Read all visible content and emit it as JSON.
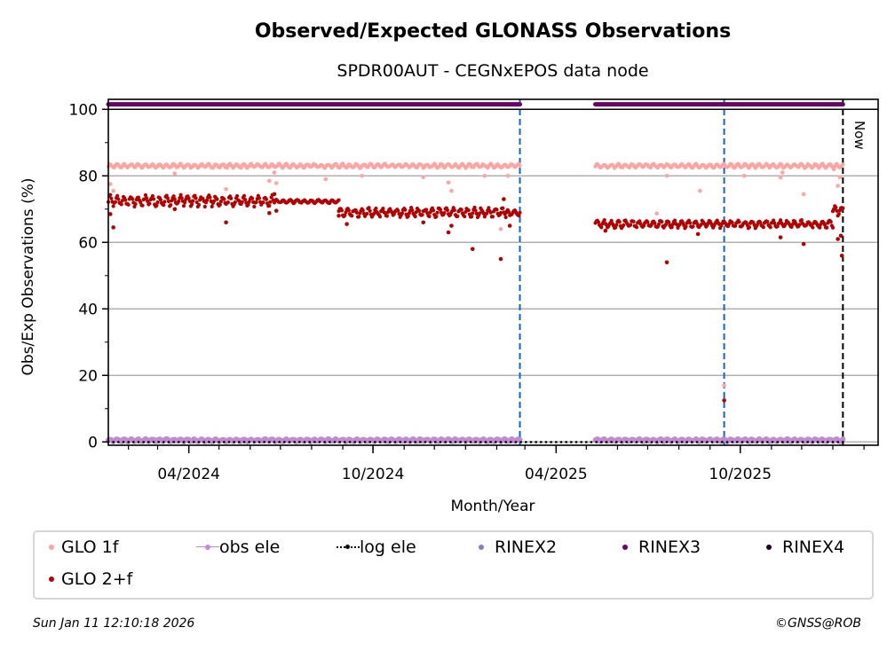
{
  "chart_data": {
    "type": "scatter",
    "title": "Observed/Expected GLONASS Observations",
    "subtitle": "SPDR00AUT - CEGNxEPOS data node",
    "xlabel": "Month/Year",
    "ylabel": "Obs/Exp Observations (%)",
    "xlim": [
      "2024-01-12",
      "2026-02-15"
    ],
    "ylim": [
      -1,
      103
    ],
    "x_ticks": [
      {
        "date": "2024-04-01",
        "label": "04/2024"
      },
      {
        "date": "2024-10-01",
        "label": "10/2024"
      },
      {
        "date": "2025-04-01",
        "label": "04/2025"
      },
      {
        "date": "2025-10-01",
        "label": "10/2025"
      }
    ],
    "y_ticks": [
      0,
      20,
      40,
      60,
      80,
      100
    ],
    "grid": "horizontal",
    "vlines": [
      {
        "date": "2025-02-24",
        "style": "dashed",
        "color": "#1565c0"
      },
      {
        "date": "2025-09-15",
        "style": "dashed",
        "color": "#1565c0"
      },
      {
        "date": "2026-01-11",
        "style": "dashed",
        "color": "#000000",
        "label": "Now"
      }
    ],
    "series": [
      {
        "name": "GLO 1f",
        "color": "#ffa3a3",
        "segments": [
          {
            "from": "2024-01-12",
            "to": "2025-02-24",
            "level": 83,
            "amp": 0.5
          },
          {
            "from": "2025-05-10",
            "to": "2026-01-11",
            "level": 83,
            "amp": 0.5
          }
        ],
        "outliers": [
          {
            "date": "2024-01-14",
            "value": 77.5
          },
          {
            "date": "2024-01-17",
            "value": 75.5
          },
          {
            "date": "2024-03-18",
            "value": 80.7
          },
          {
            "date": "2024-05-08",
            "value": 76
          },
          {
            "date": "2024-06-20",
            "value": 78.5
          },
          {
            "date": "2024-06-25",
            "value": 81
          },
          {
            "date": "2024-06-27",
            "value": 77.8
          },
          {
            "date": "2024-08-15",
            "value": 79
          },
          {
            "date": "2024-09-20",
            "value": 80
          },
          {
            "date": "2024-11-20",
            "value": 79.6
          },
          {
            "date": "2024-12-15",
            "value": 78
          },
          {
            "date": "2024-12-18",
            "value": 75.5
          },
          {
            "date": "2025-01-20",
            "value": 80
          },
          {
            "date": "2025-02-05",
            "value": 64
          },
          {
            "date": "2025-02-12",
            "value": 80
          },
          {
            "date": "2025-07-10",
            "value": 68.7
          },
          {
            "date": "2025-07-20",
            "value": 80
          },
          {
            "date": "2025-08-22",
            "value": 75.5
          },
          {
            "date": "2025-09-15",
            "value": 17
          },
          {
            "date": "2025-10-05",
            "value": 80
          },
          {
            "date": "2025-11-10",
            "value": 79.5
          },
          {
            "date": "2025-11-12",
            "value": 81
          },
          {
            "date": "2025-12-03",
            "value": 74.5
          },
          {
            "date": "2026-01-02",
            "value": 82
          },
          {
            "date": "2026-01-06",
            "value": 77
          },
          {
            "date": "2026-01-08",
            "value": 79.6
          }
        ]
      },
      {
        "name": "GLO 2+f",
        "color": "#b30000",
        "segments": [
          {
            "from": "2024-01-12",
            "to": "2024-06-25",
            "level": 72.5,
            "amp": 1.3
          },
          {
            "from": "2024-06-25",
            "to": "2024-08-28",
            "level": 72.3,
            "amp": 0.4
          },
          {
            "from": "2024-08-28",
            "to": "2025-02-10",
            "level": 69,
            "amp": 1.1
          },
          {
            "from": "2025-02-10",
            "to": "2025-02-24",
            "level": 68.8,
            "amp": 0.8
          },
          {
            "from": "2025-05-10",
            "to": "2026-01-01",
            "level": 65.5,
            "amp": 0.9
          },
          {
            "from": "2026-01-01",
            "to": "2026-01-11",
            "level": 69.5,
            "amp": 1.2
          }
        ],
        "outliers": [
          {
            "date": "2024-01-14",
            "value": 68.5
          },
          {
            "date": "2024-01-17",
            "value": 64.5
          },
          {
            "date": "2024-03-18",
            "value": 70
          },
          {
            "date": "2024-05-08",
            "value": 66
          },
          {
            "date": "2024-06-20",
            "value": 68.8
          },
          {
            "date": "2024-06-25",
            "value": 74.5
          },
          {
            "date": "2024-06-27",
            "value": 69.5
          },
          {
            "date": "2024-08-28",
            "value": 68
          },
          {
            "date": "2024-09-05",
            "value": 65.5
          },
          {
            "date": "2024-11-20",
            "value": 66
          },
          {
            "date": "2024-12-15",
            "value": 63
          },
          {
            "date": "2024-12-18",
            "value": 65
          },
          {
            "date": "2025-01-08",
            "value": 58
          },
          {
            "date": "2025-02-05",
            "value": 55
          },
          {
            "date": "2025-02-08",
            "value": 73
          },
          {
            "date": "2025-02-14",
            "value": 65
          },
          {
            "date": "2025-05-20",
            "value": 63.5
          },
          {
            "date": "2025-07-20",
            "value": 54
          },
          {
            "date": "2025-08-20",
            "value": 62.5
          },
          {
            "date": "2025-09-15",
            "value": 12.5
          },
          {
            "date": "2025-11-10",
            "value": 61.5
          },
          {
            "date": "2025-12-03",
            "value": 59.5
          },
          {
            "date": "2026-01-06",
            "value": 61
          },
          {
            "date": "2026-01-09",
            "value": 62
          },
          {
            "date": "2026-01-10",
            "value": 56
          }
        ]
      },
      {
        "name": "obs ele",
        "color": "#c08bd0",
        "segments": [
          {
            "from": "2024-01-12",
            "to": "2025-02-24",
            "level": 0.5,
            "amp": 0.3
          },
          {
            "from": "2025-05-10",
            "to": "2026-01-11",
            "level": 0.5,
            "amp": 0.3
          }
        ]
      },
      {
        "name": "log ele",
        "color": "#000000",
        "segments": [
          {
            "from": "2024-01-12",
            "to": "2026-01-11",
            "level": 0,
            "amp": 0
          }
        ]
      },
      {
        "name": "RINEX2",
        "color": "#8080c0",
        "segments": []
      },
      {
        "name": "RINEX3",
        "color": "#6a006a",
        "segments": [
          {
            "from": "2024-01-12",
            "to": "2025-02-24",
            "level": 101.5,
            "amp": 0
          },
          {
            "from": "2025-05-10",
            "to": "2026-01-11",
            "level": 101.5,
            "amp": 0
          }
        ]
      },
      {
        "name": "RINEX4",
        "color": "#1a0022",
        "segments": []
      }
    ],
    "legend": {
      "position": "below",
      "entries": [
        {
          "label": "GLO 1f",
          "kind": "dot",
          "color": "#ffa3a3"
        },
        {
          "label": "obs ele",
          "kind": "line-dot",
          "color": "#c08bd0"
        },
        {
          "label": "log ele",
          "kind": "dotted-dot",
          "color": "#000000"
        },
        {
          "label": "RINEX2",
          "kind": "dot",
          "color": "#8080c0"
        },
        {
          "label": "RINEX3",
          "kind": "dot",
          "color": "#6a006a"
        },
        {
          "label": "RINEX4",
          "kind": "dot",
          "color": "#1a0022"
        },
        {
          "label": "GLO 2+f",
          "kind": "dot",
          "color": "#b30000"
        }
      ]
    }
  },
  "footer": {
    "timestamp": "Sun Jan 11 12:10:18 2026",
    "copyright": "©GNSS@ROB"
  }
}
